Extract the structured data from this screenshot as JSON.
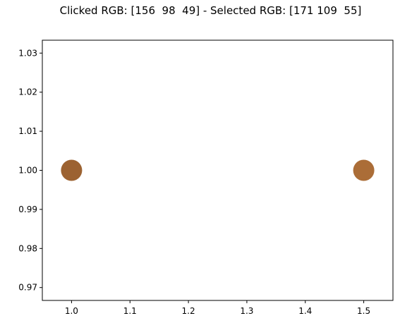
{
  "figure": {
    "title": "Clicked RGB: [156  98  49] - Selected RGB: [171 109  55]"
  },
  "chart_data": {
    "type": "scatter",
    "title": "Clicked RGB: [156  98  49] - Selected RGB: [171 109  55]",
    "xlabel": "",
    "ylabel": "",
    "xlim": [
      0.95,
      1.55
    ],
    "ylim": [
      0.9667,
      1.0333
    ],
    "grid": false,
    "xticks": [
      1.0,
      1.1,
      1.2,
      1.3,
      1.4,
      1.5
    ],
    "xtick_labels": [
      "1.0",
      "1.1",
      "1.2",
      "1.3",
      "1.4",
      "1.5"
    ],
    "yticks": [
      0.97,
      0.98,
      0.99,
      1.0,
      1.01,
      1.02,
      1.03
    ],
    "ytick_labels": [
      "0.97",
      "0.98",
      "0.99",
      "1.00",
      "1.01",
      "1.02",
      "1.03"
    ],
    "points": [
      {
        "x": 1.0,
        "y": 1.0,
        "color": "#9c6231"
      },
      {
        "x": 1.5,
        "y": 1.0,
        "color": "#ab6d37"
      }
    ]
  }
}
